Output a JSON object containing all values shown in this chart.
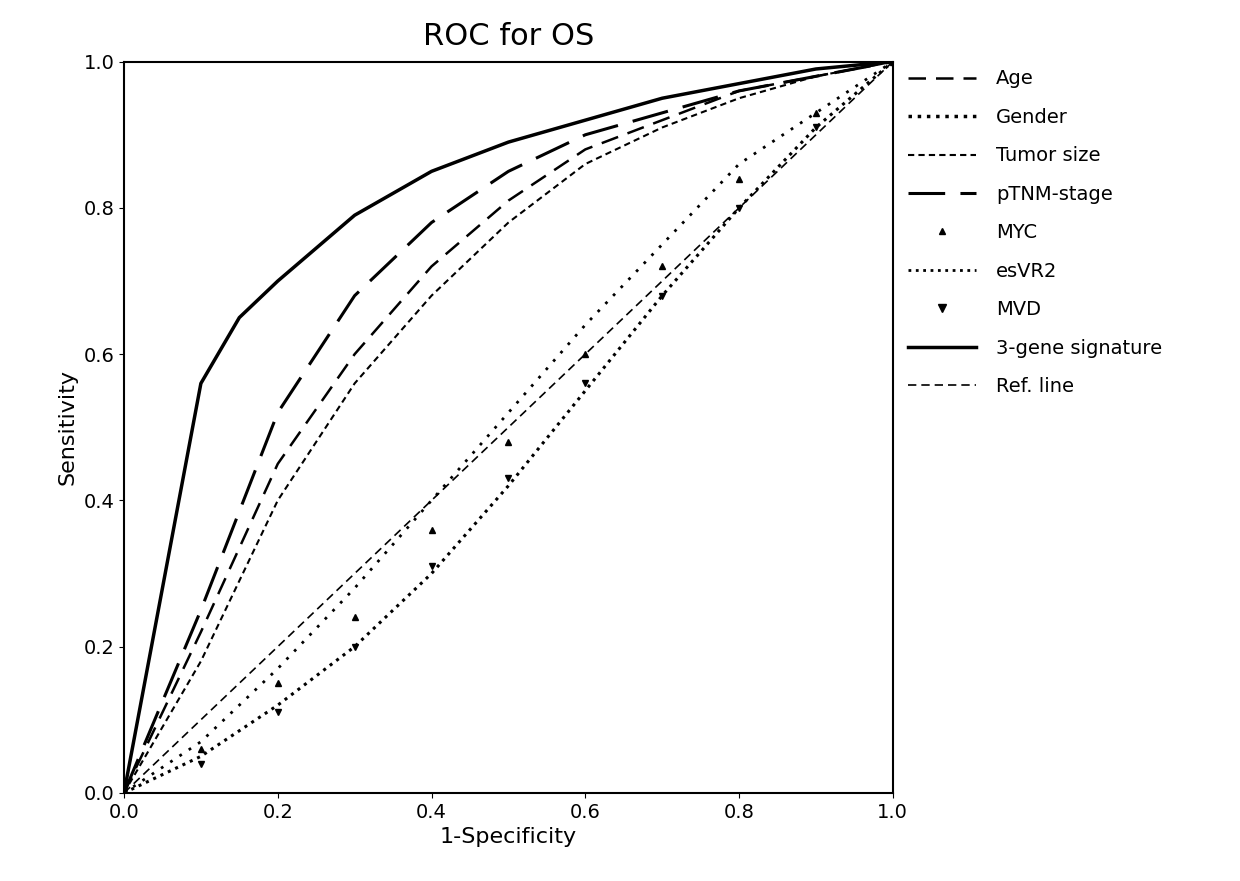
{
  "title": "ROC for OS",
  "xlabel": "1-Specificity",
  "ylabel": "Sensitivity",
  "xlim": [
    0.0,
    1.0
  ],
  "ylim": [
    0.0,
    1.0
  ],
  "xticks": [
    0.0,
    0.2,
    0.4,
    0.6,
    0.8,
    1.0
  ],
  "yticks": [
    0.0,
    0.2,
    0.4,
    0.6,
    0.8,
    1.0
  ],
  "curves": [
    {
      "label": "Age",
      "x": [
        0.0,
        0.1,
        0.2,
        0.3,
        0.4,
        0.5,
        0.6,
        0.7,
        0.8,
        0.9,
        1.0
      ],
      "y": [
        0.0,
        0.22,
        0.45,
        0.6,
        0.72,
        0.81,
        0.88,
        0.92,
        0.96,
        0.98,
        1.0
      ],
      "color": "#000000",
      "linestyle": "dashed_medium",
      "linewidth": 1.8
    },
    {
      "label": "Gender",
      "x": [
        0.0,
        0.1,
        0.2,
        0.3,
        0.4,
        0.5,
        0.6,
        0.7,
        0.8,
        0.9,
        1.0
      ],
      "y": [
        0.0,
        0.05,
        0.12,
        0.2,
        0.3,
        0.42,
        0.55,
        0.68,
        0.8,
        0.91,
        1.0
      ],
      "color": "#000000",
      "linestyle": "dotted_dense",
      "linewidth": 2.2
    },
    {
      "label": "Tumor size",
      "x": [
        0.0,
        0.1,
        0.2,
        0.3,
        0.4,
        0.5,
        0.6,
        0.7,
        0.8,
        0.9,
        1.0
      ],
      "y": [
        0.0,
        0.18,
        0.4,
        0.56,
        0.68,
        0.78,
        0.86,
        0.91,
        0.95,
        0.98,
        1.0
      ],
      "color": "#000000",
      "linestyle": "dashed_short_dense",
      "linewidth": 1.5
    },
    {
      "label": "pTNM-stage",
      "x": [
        0.0,
        0.1,
        0.2,
        0.3,
        0.4,
        0.5,
        0.6,
        0.7,
        0.8,
        0.9,
        1.0
      ],
      "y": [
        0.0,
        0.25,
        0.52,
        0.68,
        0.78,
        0.85,
        0.9,
        0.93,
        0.96,
        0.98,
        1.0
      ],
      "color": "#000000",
      "linestyle": "dashed_long",
      "linewidth": 2.2
    },
    {
      "label": "MYC",
      "x": [
        0.0,
        0.1,
        0.2,
        0.3,
        0.4,
        0.5,
        0.6,
        0.7,
        0.8,
        0.9,
        1.0
      ],
      "y": [
        0.0,
        0.06,
        0.15,
        0.24,
        0.36,
        0.48,
        0.6,
        0.72,
        0.84,
        0.93,
        1.0
      ],
      "color": "#000000",
      "linestyle": "dotted_triangle",
      "linewidth": 1.5
    },
    {
      "label": "esVR2",
      "x": [
        0.0,
        0.1,
        0.2,
        0.3,
        0.4,
        0.5,
        0.6,
        0.7,
        0.8,
        0.9,
        1.0
      ],
      "y": [
        0.0,
        0.07,
        0.17,
        0.28,
        0.4,
        0.52,
        0.64,
        0.75,
        0.86,
        0.93,
        1.0
      ],
      "color": "#000000",
      "linestyle": "dotted_medium",
      "linewidth": 2.0
    },
    {
      "label": "MVD",
      "x": [
        0.0,
        0.1,
        0.2,
        0.3,
        0.4,
        0.5,
        0.6,
        0.7,
        0.8,
        0.9,
        1.0
      ],
      "y": [
        0.0,
        0.04,
        0.11,
        0.2,
        0.31,
        0.43,
        0.56,
        0.68,
        0.8,
        0.91,
        1.0
      ],
      "color": "#000000",
      "linestyle": "dashed_triangle",
      "linewidth": 1.5
    },
    {
      "label": "3-gene signature",
      "x": [
        0.0,
        0.1,
        0.15,
        0.2,
        0.3,
        0.4,
        0.5,
        0.6,
        0.7,
        0.8,
        0.9,
        1.0
      ],
      "y": [
        0.0,
        0.56,
        0.65,
        0.7,
        0.79,
        0.85,
        0.89,
        0.92,
        0.95,
        0.97,
        0.99,
        1.0
      ],
      "color": "#000000",
      "linestyle": "solid",
      "linewidth": 2.5
    },
    {
      "label": "Ref. line",
      "x": [
        0.0,
        1.0
      ],
      "y": [
        0.0,
        1.0
      ],
      "color": "#000000",
      "linestyle": "dashed_ref",
      "linewidth": 1.2
    }
  ],
  "background_color": "#ffffff",
  "title_fontsize": 22,
  "axis_label_fontsize": 16,
  "tick_fontsize": 14,
  "legend_fontsize": 14
}
